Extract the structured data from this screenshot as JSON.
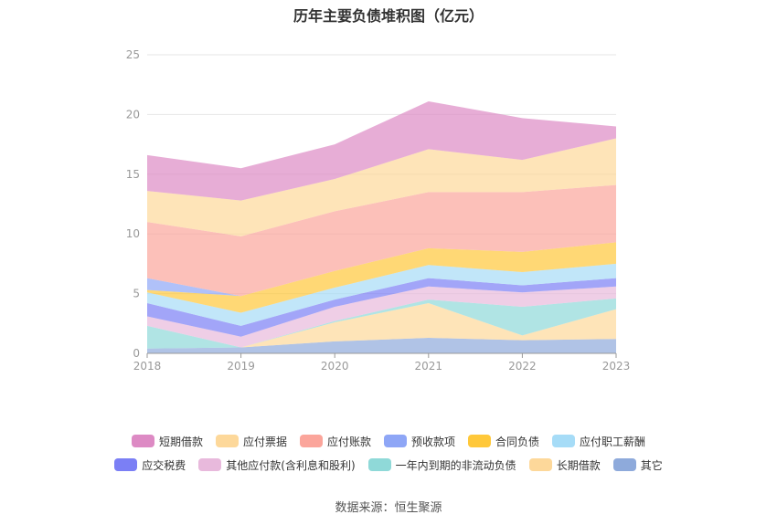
{
  "chart_data": {
    "type": "area",
    "stacked": true,
    "title": "历年主要负债堆积图（亿元）",
    "x": [
      "2018",
      "2019",
      "2020",
      "2021",
      "2022",
      "2023"
    ],
    "ylim": [
      0,
      25
    ],
    "yticks": [
      0,
      5,
      10,
      15,
      20,
      25
    ],
    "grid": true,
    "legend_position": "bottom",
    "series": [
      {
        "name": "其它",
        "color": "#8eaadb",
        "values": [
          0.4,
          0.5,
          1.0,
          1.3,
          1.1,
          1.2
        ]
      },
      {
        "name": "长期借款",
        "color": "#fdd89a",
        "values": [
          0.0,
          0.0,
          1.6,
          2.9,
          0.4,
          2.5
        ]
      },
      {
        "name": "一年内到期的非流动负债",
        "color": "#8fd9d8",
        "values": [
          1.9,
          0.0,
          0.1,
          0.3,
          2.4,
          0.9
        ]
      },
      {
        "name": "其他应付款(含利息和股利)",
        "color": "#e8b9dc",
        "values": [
          0.8,
          0.9,
          1.2,
          1.1,
          1.2,
          1.0
        ]
      },
      {
        "name": "应交税费",
        "color": "#7b7ff5",
        "values": [
          1.1,
          0.9,
          0.6,
          0.7,
          0.6,
          0.7
        ]
      },
      {
        "name": "应付职工薪酬",
        "color": "#a6dcf7",
        "values": [
          0.9,
          1.1,
          1.0,
          1.1,
          1.1,
          1.2
        ]
      },
      {
        "name": "合同负债",
        "color": "#ffc83a",
        "values": [
          0.2,
          1.4,
          1.4,
          1.4,
          1.7,
          1.8
        ]
      },
      {
        "name": "预收款项",
        "color": "#8ea6f6",
        "values": [
          1.0,
          0.0,
          0.0,
          0.0,
          0.0,
          0.0
        ]
      },
      {
        "name": "应付账款",
        "color": "#fba59b",
        "values": [
          4.7,
          5.0,
          5.0,
          4.7,
          5.0,
          4.8
        ]
      },
      {
        "name": "应付票据",
        "color": "#fdd89a",
        "values": [
          2.6,
          3.0,
          2.7,
          3.6,
          2.7,
          3.9
        ]
      },
      {
        "name": "短期借款",
        "color": "#dd8ac4",
        "values": [
          3.0,
          2.7,
          2.9,
          4.0,
          3.5,
          1.0
        ]
      }
    ]
  },
  "legend": {
    "row1": [
      {
        "label": "短期借款",
        "color": "#dd8ac4"
      },
      {
        "label": "应付票据",
        "color": "#fdd89a"
      },
      {
        "label": "应付账款",
        "color": "#fba59b"
      },
      {
        "label": "预收款项",
        "color": "#8ea6f6"
      },
      {
        "label": "合同负债",
        "color": "#ffc83a"
      },
      {
        "label": "应付职工薪酬",
        "color": "#a6dcf7"
      }
    ],
    "row2": [
      {
        "label": "应交税费",
        "color": "#7b7ff5"
      },
      {
        "label": "其他应付款(含利息和股利)",
        "color": "#e8b9dc"
      },
      {
        "label": "一年内到期的非流动负债",
        "color": "#8fd9d8"
      },
      {
        "label": "长期借款",
        "color": "#fdd89a"
      },
      {
        "label": "其它",
        "color": "#8eaadb"
      }
    ]
  },
  "source": "数据来源：恒生聚源"
}
